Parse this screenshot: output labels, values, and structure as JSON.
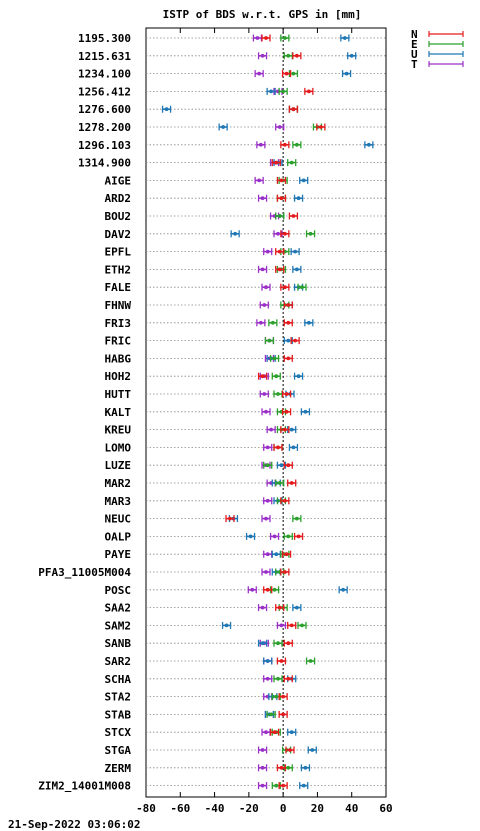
{
  "footer": {
    "timestamp": "21-Sep-2022 03:06:02"
  },
  "colors": {
    "N": "#e41a1c",
    "E": "#2ca02c",
    "U": "#1f77b4",
    "T": "#9b30c8"
  },
  "chart_data": {
    "type": "scatter",
    "title": "ISTP of BDS w.r.t. GPS in [mm]",
    "xlabel": "",
    "ylabel": "",
    "xlim": [
      -80,
      60
    ],
    "xticks": [
      -80,
      -60,
      -40,
      -20,
      0,
      20,
      40,
      60
    ],
    "grid": true,
    "legend_position": "top-right",
    "legend": [
      "N",
      "E",
      "U",
      "T"
    ],
    "categories": [
      "1195.300",
      "1215.631",
      "1234.100",
      "1256.412",
      "1276.600",
      "1278.200",
      "1296.103",
      "1314.900",
      "AIGE",
      "ARD2",
      "BOU2",
      "DAV2",
      "EPFL",
      "ETH2",
      "FALE",
      "FHNW",
      "FRI3",
      "FRIC",
      "HABG",
      "HOH2",
      "HUTT",
      "KALT",
      "KREU",
      "LOMO",
      "LUZE",
      "MAR2",
      "MAR3",
      "NEUC",
      "OALP",
      "PAYE",
      "PFA3_11005M004",
      "POSC",
      "SAA2",
      "SAM2",
      "SANB",
      "SAR2",
      "SCHA",
      "STA2",
      "STAB",
      "STCX",
      "STGA",
      "ZERM",
      "ZIM2_14001M008"
    ],
    "series": [
      {
        "name": "N",
        "values": [
          -10,
          8,
          2,
          15,
          6,
          22,
          1,
          -4,
          -1,
          -1,
          6,
          1,
          -2,
          -2,
          1,
          3,
          3,
          7,
          3,
          -12,
          2,
          2,
          1,
          -3,
          3,
          5,
          1,
          -31,
          9,
          2,
          1,
          -9,
          -2,
          5,
          3,
          -1,
          3,
          0,
          0,
          -5,
          4,
          -1,
          0
        ]
      },
      {
        "name": "E",
        "values": [
          1,
          3,
          6,
          0,
          6,
          20,
          8,
          5,
          0,
          -1,
          -2,
          16,
          1,
          -1,
          11,
          1,
          -6,
          -8,
          -5,
          -4,
          -3,
          -1,
          -1,
          -3,
          -9,
          -2,
          -1,
          8,
          3,
          1,
          -2,
          -5,
          0,
          11,
          -3,
          16,
          -3,
          -4,
          -7,
          -4,
          2,
          3,
          -4
        ]
      },
      {
        "name": "U",
        "values": [
          36,
          40,
          37,
          -7,
          -68,
          -35,
          50,
          -3,
          12,
          9,
          -2,
          -28,
          7,
          8,
          9,
          3,
          15,
          3,
          -7,
          9,
          4,
          13,
          5,
          6,
          -1,
          -4,
          -3,
          -29,
          -19,
          -4,
          -4,
          35,
          8,
          -33,
          -12,
          -9,
          5,
          -6,
          -8,
          5,
          17,
          13,
          12
        ]
      },
      {
        "name": "T",
        "values": [
          -15,
          -12,
          -14,
          -3,
          6,
          -2,
          -13,
          -5,
          -14,
          -12,
          -5,
          -3,
          -9,
          -12,
          -10,
          -11,
          -13,
          -8,
          -8,
          -11,
          -11,
          -10,
          -7,
          -9,
          -10,
          -7,
          -9,
          -10,
          -5,
          -9,
          -10,
          -18,
          -12,
          -1,
          -11,
          -9,
          -9,
          -9,
          -8,
          -10,
          -12,
          -12,
          -12
        ]
      }
    ]
  }
}
